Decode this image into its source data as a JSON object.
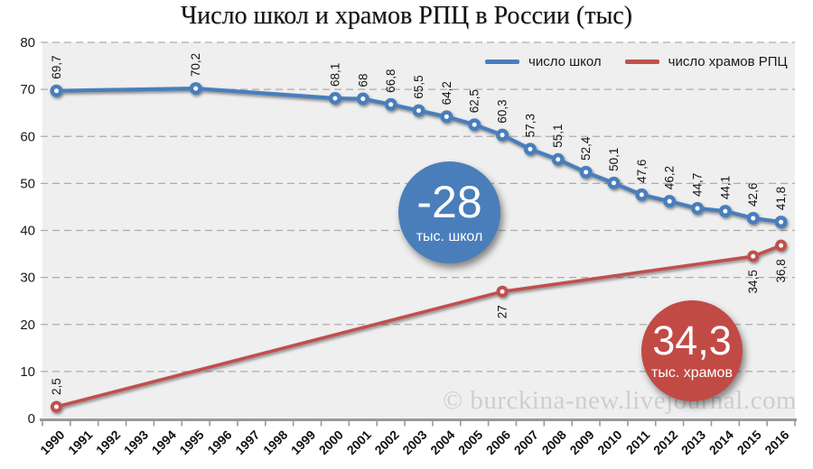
{
  "chart_data": {
    "type": "line",
    "title": "Число школ и храмов РПЦ в России (тыс)",
    "watermark": "© burckina-new.livejournal.com",
    "categories": [
      "1990",
      "1991",
      "1992",
      "1993",
      "1994",
      "1995",
      "1996",
      "1997",
      "1998",
      "1999",
      "2000",
      "2001",
      "2002",
      "2003",
      "2004",
      "2005",
      "2006",
      "2007",
      "2008",
      "2009",
      "2010",
      "2011",
      "2012",
      "2013",
      "2014",
      "2015",
      "2016"
    ],
    "series": [
      {
        "name": "число школ",
        "color": "#4A7EBB",
        "label_side": "above",
        "values": [
          69.7,
          null,
          null,
          null,
          null,
          70.2,
          null,
          null,
          null,
          null,
          68.1,
          68,
          66.8,
          65.5,
          64.2,
          62.5,
          60.3,
          57.3,
          55.1,
          52.4,
          50.1,
          47.6,
          46.2,
          44.7,
          44.1,
          42.6,
          41.8
        ]
      },
      {
        "name": "число храмов РПЦ",
        "color": "#C0504D",
        "label_side": "below",
        "label_side_overrides": {
          "0": "above"
        },
        "values": [
          2.5,
          null,
          null,
          null,
          null,
          null,
          null,
          null,
          null,
          null,
          null,
          null,
          null,
          null,
          null,
          null,
          27,
          null,
          null,
          null,
          null,
          null,
          null,
          null,
          null,
          34.5,
          36.8
        ]
      }
    ],
    "ylim": [
      0,
      80
    ],
    "ytick_step": 10,
    "grid": "horizontal-dashed",
    "legend_position": "top-right",
    "decimal_separator": ",",
    "annotations": {
      "schools": {
        "value": "-28",
        "caption": "тыс. школ",
        "color": "#4A7EBB"
      },
      "churches": {
        "value": "34,3",
        "caption": "тыс. храмов",
        "color": "#C24A45"
      }
    },
    "colors": {
      "plot_background": "#EFEFEF",
      "gridline": "#ACACAC",
      "axis": "#999999",
      "label_text": "#141414"
    }
  }
}
